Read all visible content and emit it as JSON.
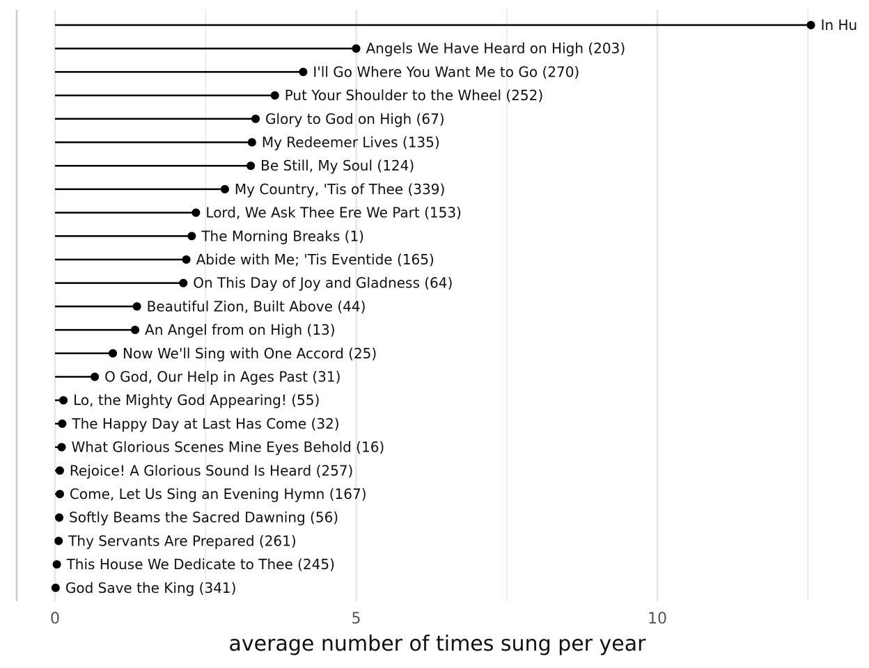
{
  "chart_data": {
    "type": "lollipop",
    "orientation": "horizontal",
    "xlabel": "average number of times sung per year",
    "xlim": [
      0,
      13.1
    ],
    "xticks": [
      0,
      5,
      10
    ],
    "xtick_labels": [
      "0",
      "5",
      "10"
    ],
    "grid": "vertical",
    "colors": {
      "stem": "#000000",
      "dot": "#000000",
      "grid": "#e6e6e6",
      "frame": "#cccccc"
    },
    "items": [
      {
        "label": "In Hu",
        "value": 12.55
      },
      {
        "label": "Angels We Have Heard on High (203)",
        "value": 5.0
      },
      {
        "label": "I'll Go Where You Want Me to Go (270)",
        "value": 4.12
      },
      {
        "label": "Put Your Shoulder to the Wheel (252)",
        "value": 3.65
      },
      {
        "label": "Glory to God on High (67)",
        "value": 3.33
      },
      {
        "label": "My Redeemer Lives (135)",
        "value": 3.27
      },
      {
        "label": "Be Still, My Soul (124)",
        "value": 3.25
      },
      {
        "label": "My Country, 'Tis of Thee (339)",
        "value": 2.82
      },
      {
        "label": "Lord, We Ask Thee Ere We Part (153)",
        "value": 2.34
      },
      {
        "label": "The Morning Breaks (1)",
        "value": 2.27
      },
      {
        "label": "Abide with Me; 'Tis Eventide (165)",
        "value": 2.18
      },
      {
        "label": "On This Day of Joy and Gladness (64)",
        "value": 2.13
      },
      {
        "label": "Beautiful Zion, Built Above (44)",
        "value": 1.36
      },
      {
        "label": "An Angel from on High (13)",
        "value": 1.33
      },
      {
        "label": "Now We'll Sing with One Accord (25)",
        "value": 0.96
      },
      {
        "label": "O God, Our Help in Ages Past (31)",
        "value": 0.66
      },
      {
        "label": "Lo, the Mighty God Appearing! (55)",
        "value": 0.14
      },
      {
        "label": "The Happy Day at Last Has Come (32)",
        "value": 0.12
      },
      {
        "label": "What Glorious Scenes Mine Eyes Behold (16)",
        "value": 0.11
      },
      {
        "label": "Rejoice! A Glorious Sound Is Heard (257)",
        "value": 0.08
      },
      {
        "label": "Come, Let Us Sing an Evening Hymn (167)",
        "value": 0.08
      },
      {
        "label": "Softly Beams the Sacred Dawning (56)",
        "value": 0.07
      },
      {
        "label": "Thy Servants Are Prepared (261)",
        "value": 0.06
      },
      {
        "label": "This House We Dedicate to Thee (245)",
        "value": 0.03
      },
      {
        "label": "God Save the King (341)",
        "value": 0.01
      }
    ]
  }
}
